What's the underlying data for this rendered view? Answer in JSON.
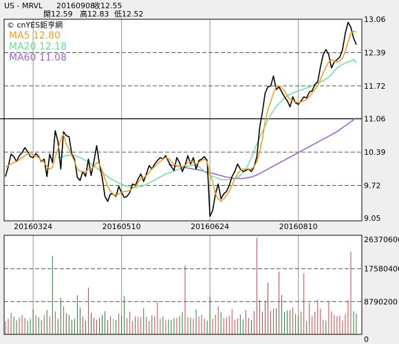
{
  "header": {
    "symbol": "US - MRVL",
    "date": "20160908",
    "close_label": "收12.55",
    "open_label": "開12.59",
    "high_label": "高12.83",
    "low_label": "低12.52"
  },
  "watermark": "© cnYES鉅亨網",
  "colors": {
    "price": "#000000",
    "ma5": "#f0a020",
    "ma20": "#60e090",
    "ma60": "#a060d8",
    "volume_up": "#d04040",
    "volume_down": "#208030",
    "volume_flat": "#a0a0a0",
    "panel_bg": "#ffffff",
    "page_bg": "#efefef"
  },
  "chart_data": [
    {
      "type": "line",
      "panel": "price",
      "ylim": [
        9.05,
        13.06
      ],
      "y_ticks": [
        "13.06",
        "12.39",
        "11.72",
        "11.06",
        "10.39",
        "9.72",
        "9.05"
      ],
      "x_ticks": [
        {
          "label": "20160324",
          "index": 10
        },
        {
          "label": "20160510",
          "index": 42
        },
        {
          "label": "20160624",
          "index": 74
        },
        {
          "label": "20160810",
          "index": 106
        }
      ],
      "n_points": 128,
      "series": [
        {
          "name": "price",
          "label": "",
          "values": [
            9.9,
            10.1,
            10.35,
            10.3,
            10.2,
            10.32,
            10.38,
            10.48,
            10.4,
            10.3,
            10.28,
            10.36,
            10.3,
            10.2,
            10.25,
            9.9,
            10.35,
            10.18,
            10.82,
            10.6,
            10.05,
            10.8,
            10.72,
            10.7,
            10.35,
            10.25,
            9.88,
            9.82,
            10.0,
            9.9,
            10.25,
            9.92,
            10.2,
            10.52,
            10.15,
            9.88,
            9.5,
            9.4,
            9.55,
            9.55,
            9.5,
            9.7,
            9.58,
            9.48,
            9.5,
            9.58,
            9.75,
            9.72,
            9.85,
            9.95,
            9.8,
            9.95,
            10.12,
            10.05,
            10.15,
            10.22,
            10.28,
            10.25,
            10.32,
            10.2,
            10.1,
            10.02,
            10.28,
            10.18,
            10.0,
            10.12,
            10.32,
            10.15,
            10.28,
            10.05,
            10.22,
            10.25,
            10.3,
            10.22,
            9.1,
            9.22,
            9.55,
            9.75,
            9.45,
            9.55,
            9.6,
            9.72,
            9.9,
            10.0,
            10.15,
            10.05,
            10.0,
            10.02,
            10.05,
            10.0,
            10.1,
            10.3,
            10.88,
            11.2,
            11.58,
            11.7,
            11.72,
            11.92,
            11.65,
            11.7,
            11.6,
            11.5,
            11.42,
            11.3,
            11.5,
            11.38,
            11.35,
            11.42,
            11.5,
            11.48,
            11.6,
            11.62,
            11.75,
            11.8,
            12.1,
            12.35,
            12.45,
            12.35,
            12.08,
            12.2,
            12.25,
            12.3,
            12.45,
            12.78,
            13.0,
            12.9,
            12.68,
            12.55
          ]
        },
        {
          "name": "ma5",
          "label": "MA5 12.80",
          "values": [
            10.1,
            10.12,
            10.15,
            10.18,
            10.2,
            10.24,
            10.28,
            10.32,
            10.35,
            10.36,
            10.33,
            10.3,
            10.28,
            10.22,
            10.18,
            10.1,
            10.05,
            10.08,
            10.3,
            10.45,
            10.65,
            10.75,
            10.55,
            10.45,
            10.32,
            10.2,
            10.05,
            10.0,
            10.0,
            9.98,
            10.05,
            10.05,
            10.1,
            10.18,
            10.15,
            10.02,
            9.85,
            9.7,
            9.6,
            9.55,
            9.52,
            9.55,
            9.58,
            9.6,
            9.6,
            9.62,
            9.66,
            9.7,
            9.78,
            9.85,
            9.88,
            9.92,
            9.98,
            10.05,
            10.1,
            10.15,
            10.2,
            10.25,
            10.28,
            10.26,
            10.2,
            10.15,
            10.12,
            10.1,
            10.1,
            10.12,
            10.18,
            10.2,
            10.18,
            10.15,
            10.18,
            10.22,
            10.25,
            10.2,
            9.95,
            9.8,
            9.55,
            9.45,
            9.4,
            9.45,
            9.52,
            9.6,
            9.72,
            9.85,
            9.95,
            10.02,
            10.05,
            10.05,
            10.05,
            10.05,
            10.1,
            10.2,
            10.4,
            10.65,
            11.0,
            11.25,
            11.4,
            11.58,
            11.7,
            11.72,
            11.68,
            11.62,
            11.52,
            11.45,
            11.42,
            11.4,
            11.38,
            11.4,
            11.42,
            11.45,
            11.5,
            11.58,
            11.65,
            11.72,
            11.85,
            11.98,
            12.1,
            12.2,
            12.25,
            12.22,
            12.2,
            12.22,
            12.28,
            12.42,
            12.6,
            12.78,
            12.82,
            12.8
          ]
        },
        {
          "name": "ma20",
          "label": "MA20 12.18",
          "values": [
            null,
            null,
            null,
            null,
            null,
            null,
            null,
            null,
            null,
            null,
            null,
            null,
            null,
            null,
            null,
            null,
            null,
            null,
            null,
            10.27,
            10.29,
            10.3,
            10.32,
            10.33,
            10.33,
            10.32,
            10.3,
            10.28,
            10.25,
            10.22,
            10.19,
            10.15,
            10.11,
            10.07,
            10.03,
            9.99,
            9.94,
            9.9,
            9.86,
            9.83,
            9.8,
            9.77,
            9.74,
            9.72,
            9.7,
            9.69,
            9.68,
            9.68,
            9.69,
            9.7,
            9.72,
            9.74,
            9.77,
            9.8,
            9.83,
            9.86,
            9.89,
            9.92,
            9.95,
            9.97,
            9.99,
            10.01,
            10.03,
            10.05,
            10.07,
            10.09,
            10.11,
            10.12,
            10.13,
            10.14,
            10.1,
            10.05,
            10.0,
            9.96,
            9.93,
            9.9,
            9.88,
            9.86,
            9.84,
            9.83,
            9.83,
            9.84,
            9.85,
            9.86,
            9.88,
            9.92,
            9.98,
            10.05,
            10.15,
            10.28,
            10.42,
            10.55,
            10.68,
            10.8,
            10.92,
            11.04,
            11.14,
            11.22,
            11.3,
            11.36,
            11.42,
            11.48,
            11.52,
            11.55,
            11.58,
            11.6,
            11.62,
            11.64,
            11.66,
            11.68,
            11.7,
            11.72,
            11.75,
            11.78,
            11.8,
            11.83,
            11.86,
            11.9,
            11.95,
            12.02,
            12.08,
            12.12,
            12.15,
            12.18,
            12.2,
            12.22,
            12.25,
            12.18
          ]
        },
        {
          "name": "ma60",
          "label": "MA60 11.08",
          "values": [
            null,
            null,
            null,
            null,
            null,
            null,
            null,
            null,
            null,
            null,
            null,
            null,
            null,
            null,
            null,
            null,
            null,
            null,
            null,
            null,
            null,
            null,
            null,
            null,
            null,
            null,
            null,
            null,
            null,
            null,
            null,
            null,
            null,
            null,
            null,
            null,
            null,
            null,
            null,
            null,
            null,
            null,
            null,
            null,
            null,
            null,
            null,
            null,
            null,
            null,
            null,
            null,
            null,
            null,
            null,
            null,
            null,
            null,
            null,
            10.14,
            10.13,
            10.12,
            10.11,
            10.1,
            10.09,
            10.08,
            10.07,
            10.06,
            10.05,
            10.04,
            10.03,
            10.02,
            10.0,
            9.99,
            9.98,
            9.96,
            9.95,
            9.93,
            9.92,
            9.9,
            9.89,
            9.88,
            9.87,
            9.86,
            9.86,
            9.86,
            9.86,
            9.87,
            9.88,
            9.89,
            9.91,
            9.93,
            9.96,
            9.99,
            10.02,
            10.05,
            10.08,
            10.11,
            10.14,
            10.17,
            10.2,
            10.23,
            10.26,
            10.29,
            10.32,
            10.35,
            10.38,
            10.41,
            10.44,
            10.47,
            10.5,
            10.53,
            10.56,
            10.59,
            10.62,
            10.65,
            10.68,
            10.71,
            10.74,
            10.77,
            10.8,
            10.84,
            10.88,
            10.92,
            10.96,
            11.0,
            11.04,
            11.08
          ]
        }
      ]
    },
    {
      "type": "bar",
      "panel": "volume",
      "ylim": [
        0,
        26370600
      ],
      "y_ticks": [
        "26370600",
        "17580400",
        "8790200",
        "0"
      ],
      "n_points": 128,
      "values": [
        3500000,
        4200000,
        5800000,
        4800000,
        3800000,
        4500000,
        5200000,
        4400000,
        3600000,
        4200000,
        6800000,
        5100000,
        4600000,
        3800000,
        5200000,
        6500000,
        4800000,
        21000000,
        6200000,
        4200000,
        9800000,
        7500000,
        5600000,
        5200000,
        3800000,
        4200000,
        10500000,
        7200000,
        4800000,
        3600000,
        12500000,
        5800000,
        4500000,
        3900000,
        4400000,
        5200000,
        6200000,
        3800000,
        4800000,
        4200000,
        3900000,
        5600000,
        5000000,
        10200000,
        4300000,
        6100000,
        3500000,
        4800000,
        4700000,
        4600000,
        7000000,
        4700000,
        3500000,
        5100000,
        4900000,
        8900000,
        4200000,
        4800000,
        3800000,
        4000000,
        3900000,
        4300000,
        4400000,
        4900000,
        6000000,
        18500000,
        4600000,
        4500000,
        4200000,
        6700000,
        4800000,
        5200000,
        4200000,
        3700000,
        10200000,
        4200000,
        5300000,
        7500000,
        5900000,
        4300000,
        4600000,
        5000000,
        6800000,
        3900000,
        4300000,
        5300000,
        4000000,
        6500000,
        4400000,
        3900000,
        6300000,
        25900000,
        9200000,
        6100000,
        9000000,
        13800000,
        6300000,
        6900000,
        7000000,
        16800000,
        10600000,
        6100000,
        6400000,
        6500000,
        7200000,
        5500000,
        5000000,
        6100000,
        16400000,
        3500000,
        8400000,
        4800000,
        6100000,
        9200000,
        6900000,
        3900000,
        3700000,
        8900000,
        6200000,
        5300000,
        4800000,
        5000000,
        3800000,
        5400000,
        9200000,
        22200000,
        6200000,
        5600000
      ],
      "directions": [
        "up",
        "up",
        "up",
        "down",
        "down",
        "up",
        "up",
        "up",
        "down",
        "down",
        "down",
        "up",
        "down",
        "down",
        "up",
        "down",
        "up",
        "down",
        "up",
        "down",
        "down",
        "up",
        "down",
        "down",
        "down",
        "down",
        "down",
        "down",
        "up",
        "down",
        "up",
        "down",
        "up",
        "up",
        "down",
        "down",
        "down",
        "down",
        "up",
        "flat",
        "down",
        "up",
        "down",
        "down",
        "up",
        "up",
        "up",
        "down",
        "up",
        "up",
        "down",
        "up",
        "up",
        "down",
        "up",
        "up",
        "up",
        "down",
        "up",
        "down",
        "down",
        "down",
        "up",
        "down",
        "down",
        "up",
        "up",
        "down",
        "up",
        "down",
        "up",
        "up",
        "up",
        "down",
        "down",
        "up",
        "up",
        "up",
        "down",
        "up",
        "up",
        "up",
        "up",
        "up",
        "up",
        "down",
        "down",
        "up",
        "up",
        "down",
        "up",
        "up",
        "up",
        "up",
        "up",
        "up",
        "up",
        "up",
        "down",
        "up",
        "down",
        "down",
        "down",
        "down",
        "up",
        "down",
        "down",
        "up",
        "up",
        "down",
        "up",
        "up",
        "up",
        "up",
        "up",
        "up",
        "down",
        "up",
        "up",
        "up",
        "up",
        "up",
        "up",
        "up",
        "up",
        "up",
        "down",
        "down"
      ]
    }
  ]
}
